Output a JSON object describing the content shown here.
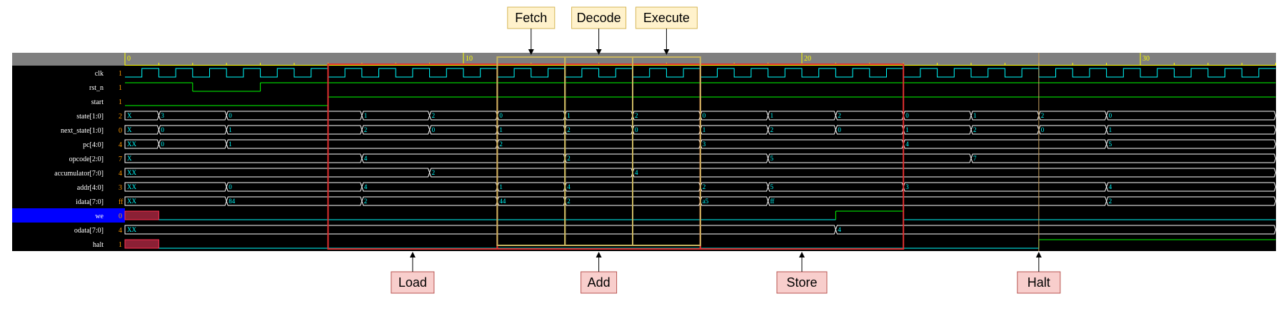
{
  "wave": {
    "ticks": [
      "0",
      "10",
      "20",
      "30"
    ],
    "signals": [
      {
        "name": "clk",
        "value": "1",
        "kind": "clock"
      },
      {
        "name": "rst_n",
        "value": "1",
        "kind": "bit",
        "changes": [
          [
            0,
            1
          ],
          [
            2,
            0
          ],
          [
            4,
            1
          ]
        ]
      },
      {
        "name": "start",
        "value": "1",
        "kind": "bit",
        "changes": [
          [
            0,
            0
          ],
          [
            6,
            1
          ]
        ]
      },
      {
        "name": "state[1:0]",
        "value": "2",
        "kind": "bus",
        "changes": [
          [
            0,
            "X"
          ],
          [
            1,
            "3"
          ],
          [
            3,
            "0"
          ],
          [
            7,
            "1"
          ],
          [
            9,
            "2"
          ],
          [
            11,
            "0"
          ],
          [
            13,
            "1"
          ],
          [
            15,
            "2"
          ],
          [
            17,
            "0"
          ],
          [
            19,
            "1"
          ],
          [
            21,
            "2"
          ],
          [
            23,
            "0"
          ],
          [
            25,
            "1"
          ],
          [
            27,
            "2"
          ],
          [
            29,
            "0"
          ]
        ]
      },
      {
        "name": "next_state[1:0]",
        "value": "0",
        "kind": "bus",
        "changes": [
          [
            0,
            "X"
          ],
          [
            1,
            "0"
          ],
          [
            3,
            "1"
          ],
          [
            7,
            "2"
          ],
          [
            9,
            "0"
          ],
          [
            11,
            "1"
          ],
          [
            13,
            "2"
          ],
          [
            15,
            "0"
          ],
          [
            17,
            "1"
          ],
          [
            19,
            "2"
          ],
          [
            21,
            "0"
          ],
          [
            23,
            "1"
          ],
          [
            25,
            "2"
          ],
          [
            27,
            "0"
          ],
          [
            29,
            "1"
          ]
        ]
      },
      {
        "name": "pc[4:0]",
        "value": "4",
        "kind": "bus",
        "changes": [
          [
            0,
            "XX"
          ],
          [
            1,
            "0"
          ],
          [
            3,
            "1"
          ],
          [
            11,
            "2"
          ],
          [
            17,
            "3"
          ],
          [
            23,
            "4"
          ],
          [
            29,
            "5"
          ]
        ]
      },
      {
        "name": "opcode[2:0]",
        "value": "7",
        "kind": "bus",
        "changes": [
          [
            0,
            "X"
          ],
          [
            7,
            "4"
          ],
          [
            13,
            "2"
          ],
          [
            19,
            "5"
          ],
          [
            25,
            "7"
          ]
        ]
      },
      {
        "name": "accumulator[7:0]",
        "value": "4",
        "kind": "bus",
        "changes": [
          [
            0,
            "XX"
          ],
          [
            9,
            "2"
          ],
          [
            15,
            "4"
          ]
        ]
      },
      {
        "name": "addr[4:0]",
        "value": "3",
        "kind": "bus",
        "changes": [
          [
            0,
            "XX"
          ],
          [
            3,
            "0"
          ],
          [
            7,
            "4"
          ],
          [
            11,
            "1"
          ],
          [
            13,
            "4"
          ],
          [
            17,
            "2"
          ],
          [
            19,
            "5"
          ],
          [
            23,
            "3"
          ],
          [
            29,
            "4"
          ]
        ]
      },
      {
        "name": "idata[7:0]",
        "value": "ff",
        "kind": "bus",
        "changes": [
          [
            0,
            "XX"
          ],
          [
            3,
            "84"
          ],
          [
            7,
            "2"
          ],
          [
            11,
            "44"
          ],
          [
            13,
            "2"
          ],
          [
            17,
            "a5"
          ],
          [
            19,
            "ff"
          ],
          [
            29,
            "2"
          ]
        ]
      },
      {
        "name": "we",
        "value": "0",
        "kind": "bit",
        "highlight": true,
        "changes": [
          [
            0,
            "x"
          ],
          [
            1,
            0
          ],
          [
            21,
            1
          ],
          [
            23,
            0
          ]
        ]
      },
      {
        "name": "odata[7:0]",
        "value": "4",
        "kind": "bus",
        "changes": [
          [
            0,
            "XX"
          ],
          [
            21,
            "4"
          ]
        ]
      },
      {
        "name": "halt",
        "value": "1",
        "kind": "bit",
        "changes": [
          [
            0,
            "x"
          ],
          [
            1,
            0
          ],
          [
            27,
            1
          ]
        ]
      }
    ],
    "phases": [
      {
        "label": "Fetch",
        "t0": 11,
        "t1": 13
      },
      {
        "label": "Decode",
        "t0": 13,
        "t1": 15
      },
      {
        "label": "Execute",
        "t0": 15,
        "t1": 17
      }
    ],
    "instructions": [
      {
        "label": "Load",
        "t0": 6,
        "t1": 11,
        "arrow_t": 8.5
      },
      {
        "label": "Add",
        "t0": 11,
        "t1": 17,
        "arrow_t": 14
      },
      {
        "label": "Store",
        "t0": 17,
        "t1": 23,
        "arrow_t": 20
      },
      {
        "label": "Halt",
        "t0": 27,
        "t1": 27,
        "arrow_t": 27
      }
    ],
    "colors": {
      "clock": "#00ffff",
      "bit": "#00ff00",
      "bus": "#ffffff",
      "x_fill": "#8b2035",
      "highlight_row": "#0000ff",
      "phase_box": "#c8b560",
      "instr_box": "#e03030",
      "phase_label_bg": "#fff2cc",
      "phase_label_border": "#d6b656",
      "instr_label_bg": "#f8cecc",
      "instr_label_border": "#b85450"
    }
  }
}
